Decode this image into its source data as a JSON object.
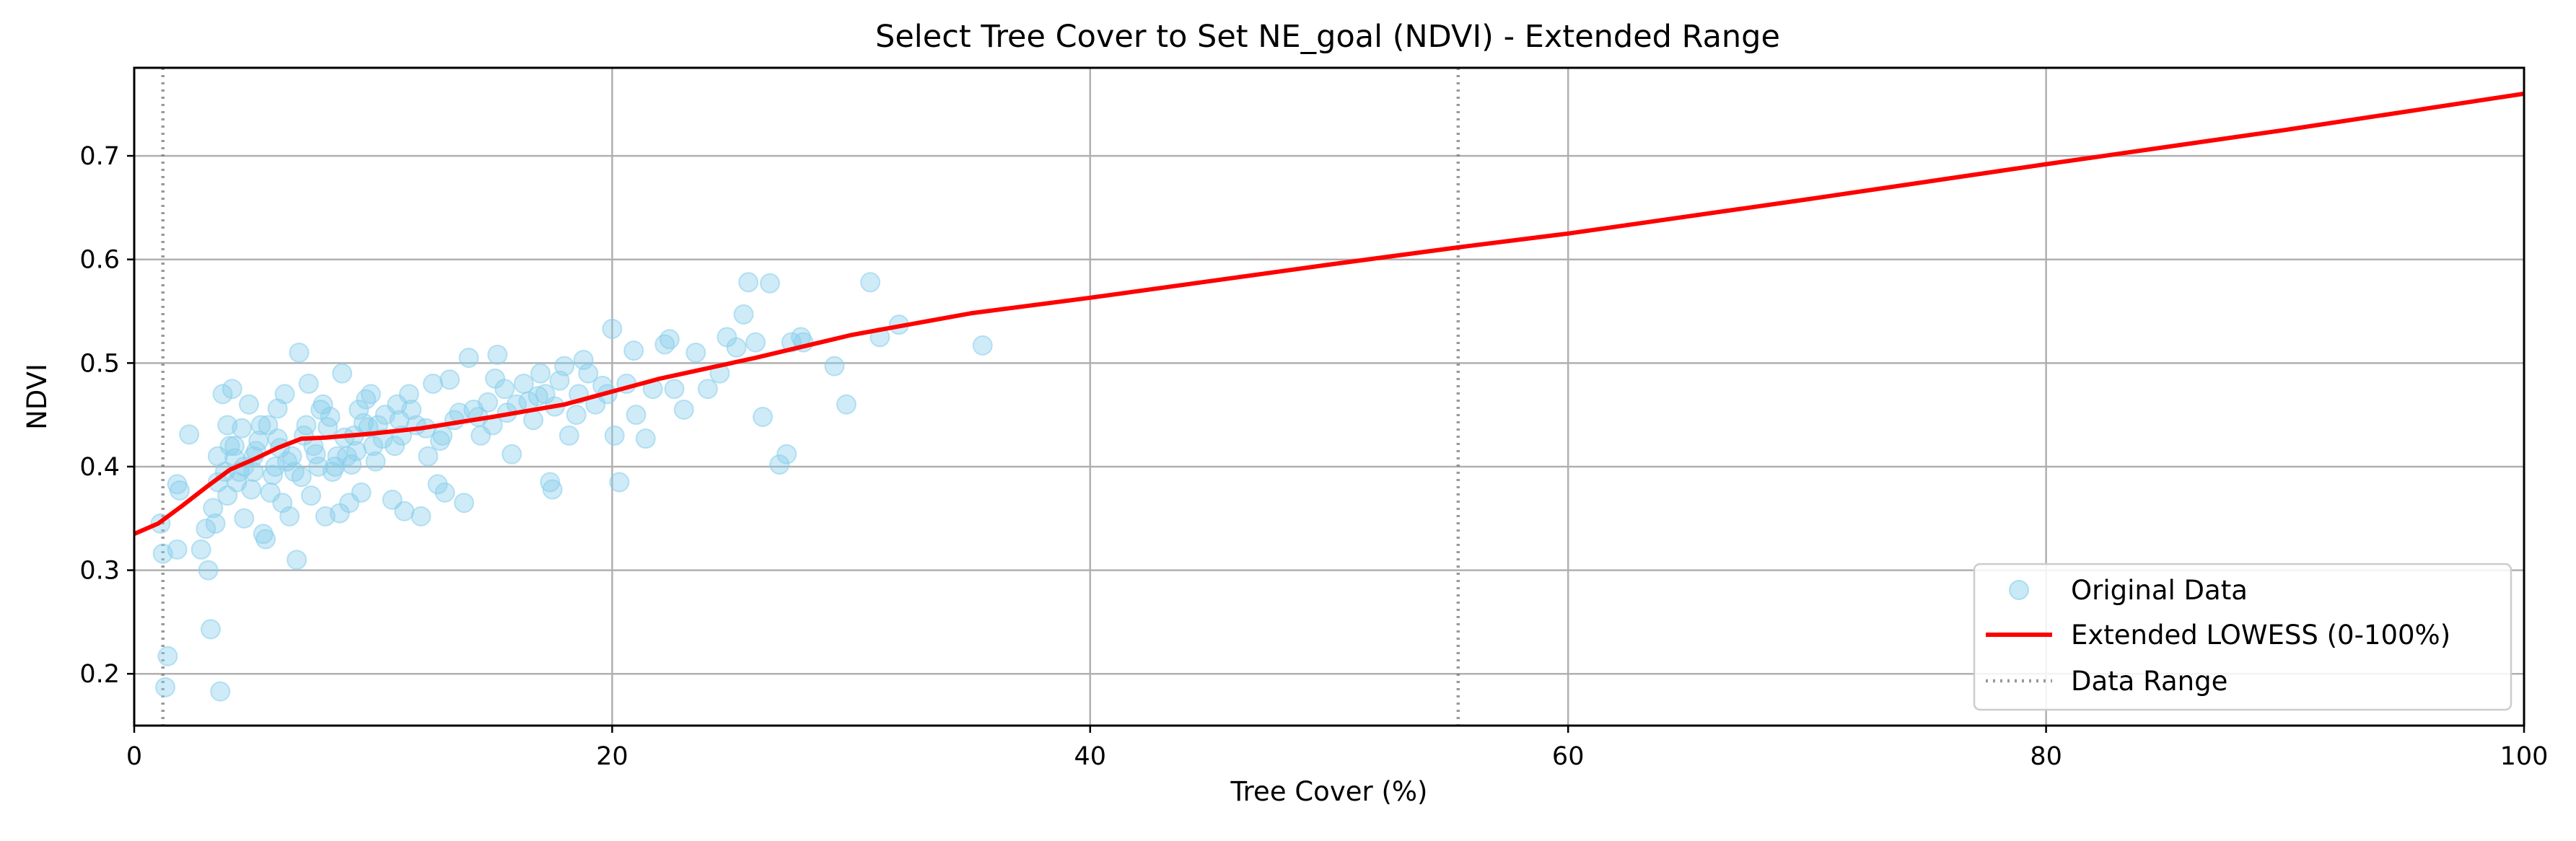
{
  "chart_data": {
    "type": "scatter",
    "title": "Select Tree Cover to Set NE_goal (NDVI) - Extended Range",
    "xlabel": "Tree Cover (%)",
    "ylabel": "NDVI",
    "xlim": [
      0,
      100
    ],
    "ylim": [
      0.15,
      0.785
    ],
    "x_ticks": [
      0,
      20,
      40,
      60,
      80,
      100
    ],
    "y_ticks": [
      0.2,
      0.3,
      0.4,
      0.5,
      0.6,
      0.7
    ],
    "grid": true,
    "legend_position": "lower-right",
    "legend": [
      "Original Data",
      "Extended LOWESS (0-100%)",
      "Data Range"
    ],
    "colors": {
      "points": "#87ceeb",
      "lowess": "#ff0000",
      "range": "#808080"
    },
    "series": [
      {
        "name": "Original Data",
        "style": "markers",
        "points": [
          [
            1.1,
            0.345
          ],
          [
            1.2,
            0.316
          ],
          [
            1.3,
            0.187
          ],
          [
            1.4,
            0.217
          ],
          [
            1.8,
            0.383
          ],
          [
            1.9,
            0.377
          ],
          [
            1.8,
            0.32
          ],
          [
            2.3,
            0.431
          ],
          [
            2.8,
            0.32
          ],
          [
            3.0,
            0.34
          ],
          [
            3.1,
            0.3
          ],
          [
            3.2,
            0.243
          ],
          [
            3.6,
            0.183
          ],
          [
            3.3,
            0.36
          ],
          [
            3.4,
            0.345
          ],
          [
            3.5,
            0.41
          ],
          [
            3.7,
            0.47
          ],
          [
            3.8,
            0.395
          ],
          [
            3.9,
            0.44
          ],
          [
            4.1,
            0.475
          ],
          [
            4.2,
            0.42
          ],
          [
            4.3,
            0.385
          ],
          [
            4.5,
            0.437
          ],
          [
            4.6,
            0.35
          ],
          [
            4.8,
            0.46
          ],
          [
            5.0,
            0.395
          ],
          [
            5.1,
            0.415
          ],
          [
            5.3,
            0.44
          ],
          [
            5.4,
            0.335
          ],
          [
            5.5,
            0.33
          ],
          [
            5.7,
            0.375
          ],
          [
            5.9,
            0.4
          ],
          [
            6.0,
            0.456
          ],
          [
            6.2,
            0.365
          ],
          [
            6.3,
            0.47
          ],
          [
            6.5,
            0.352
          ],
          [
            6.6,
            0.41
          ],
          [
            6.8,
            0.31
          ],
          [
            6.9,
            0.51
          ],
          [
            7.0,
            0.39
          ],
          [
            7.2,
            0.44
          ],
          [
            7.3,
            0.48
          ],
          [
            7.5,
            0.42
          ],
          [
            7.7,
            0.4
          ],
          [
            7.9,
            0.46
          ],
          [
            8.0,
            0.352
          ],
          [
            8.2,
            0.448
          ],
          [
            8.4,
            0.4
          ],
          [
            8.6,
            0.355
          ],
          [
            8.7,
            0.49
          ],
          [
            8.9,
            0.41
          ],
          [
            9.0,
            0.365
          ],
          [
            9.2,
            0.43
          ],
          [
            9.4,
            0.455
          ],
          [
            9.5,
            0.375
          ],
          [
            9.7,
            0.465
          ],
          [
            9.9,
            0.47
          ],
          [
            10.0,
            0.42
          ],
          [
            10.2,
            0.44
          ],
          [
            10.5,
            0.45
          ],
          [
            10.8,
            0.368
          ],
          [
            11.0,
            0.46
          ],
          [
            11.2,
            0.43
          ],
          [
            11.3,
            0.357
          ],
          [
            11.5,
            0.47
          ],
          [
            11.8,
            0.44
          ],
          [
            12.0,
            0.352
          ],
          [
            12.3,
            0.41
          ],
          [
            12.5,
            0.48
          ],
          [
            12.7,
            0.383
          ],
          [
            13.0,
            0.375
          ],
          [
            13.2,
            0.484
          ],
          [
            13.4,
            0.445
          ],
          [
            13.8,
            0.365
          ],
          [
            14.0,
            0.505
          ],
          [
            14.2,
            0.455
          ],
          [
            14.5,
            0.43
          ],
          [
            14.8,
            0.462
          ],
          [
            15.0,
            0.44
          ],
          [
            15.2,
            0.508
          ],
          [
            15.5,
            0.475
          ],
          [
            15.8,
            0.412
          ],
          [
            16.0,
            0.46
          ],
          [
            16.3,
            0.48
          ],
          [
            16.7,
            0.445
          ],
          [
            17.0,
            0.49
          ],
          [
            17.2,
            0.47
          ],
          [
            17.4,
            0.385
          ],
          [
            17.5,
            0.378
          ],
          [
            17.8,
            0.483
          ],
          [
            18.0,
            0.497
          ],
          [
            18.2,
            0.43
          ],
          [
            18.5,
            0.45
          ],
          [
            18.8,
            0.503
          ],
          [
            19.0,
            0.49
          ],
          [
            19.3,
            0.46
          ],
          [
            19.8,
            0.47
          ],
          [
            20.0,
            0.533
          ],
          [
            20.1,
            0.43
          ],
          [
            20.3,
            0.385
          ],
          [
            20.6,
            0.48
          ],
          [
            20.9,
            0.512
          ],
          [
            21.0,
            0.45
          ],
          [
            21.4,
            0.427
          ],
          [
            21.7,
            0.475
          ],
          [
            22.2,
            0.518
          ],
          [
            22.4,
            0.523
          ],
          [
            22.6,
            0.475
          ],
          [
            23.0,
            0.455
          ],
          [
            23.5,
            0.51
          ],
          [
            24.0,
            0.475
          ],
          [
            24.5,
            0.49
          ],
          [
            24.8,
            0.525
          ],
          [
            25.2,
            0.515
          ],
          [
            25.5,
            0.547
          ],
          [
            25.7,
            0.578
          ],
          [
            26.0,
            0.52
          ],
          [
            26.3,
            0.448
          ],
          [
            26.6,
            0.577
          ],
          [
            27.0,
            0.402
          ],
          [
            27.3,
            0.412
          ],
          [
            27.5,
            0.52
          ],
          [
            27.9,
            0.525
          ],
          [
            28.0,
            0.52
          ],
          [
            29.3,
            0.497
          ],
          [
            29.8,
            0.46
          ],
          [
            30.8,
            0.578
          ],
          [
            31.2,
            0.525
          ],
          [
            32.0,
            0.537
          ],
          [
            35.5,
            0.517
          ],
          [
            4.2,
            0.408
          ],
          [
            4.6,
            0.4
          ],
          [
            5.2,
            0.425
          ],
          [
            5.6,
            0.44
          ],
          [
            6.1,
            0.418
          ],
          [
            6.4,
            0.405
          ],
          [
            7.1,
            0.43
          ],
          [
            7.6,
            0.412
          ],
          [
            8.1,
            0.438
          ],
          [
            8.8,
            0.428
          ],
          [
            9.3,
            0.415
          ],
          [
            9.8,
            0.438
          ],
          [
            10.4,
            0.427
          ],
          [
            10.9,
            0.42
          ],
          [
            11.6,
            0.455
          ],
          [
            12.2,
            0.437
          ],
          [
            12.9,
            0.43
          ],
          [
            13.6,
            0.452
          ],
          [
            14.4,
            0.448
          ],
          [
            15.6,
            0.452
          ],
          [
            16.5,
            0.463
          ],
          [
            17.6,
            0.458
          ],
          [
            18.6,
            0.47
          ],
          [
            19.6,
            0.478
          ],
          [
            3.5,
            0.385
          ],
          [
            3.9,
            0.372
          ],
          [
            4.4,
            0.395
          ],
          [
            4.9,
            0.378
          ],
          [
            5.8,
            0.392
          ],
          [
            6.7,
            0.395
          ],
          [
            7.4,
            0.372
          ],
          [
            8.3,
            0.395
          ],
          [
            9.1,
            0.402
          ],
          [
            10.1,
            0.405
          ],
          [
            5.0,
            0.41
          ],
          [
            6.0,
            0.427
          ],
          [
            4.0,
            0.42
          ],
          [
            7.8,
            0.455
          ],
          [
            8.5,
            0.41
          ],
          [
            9.6,
            0.442
          ],
          [
            11.1,
            0.445
          ],
          [
            12.8,
            0.425
          ],
          [
            15.1,
            0.485
          ],
          [
            16.9,
            0.468
          ]
        ]
      },
      {
        "name": "Extended LOWESS (0-100%)",
        "style": "line",
        "x": [
          0,
          1,
          2,
          3,
          4,
          5,
          6,
          7,
          8,
          10,
          12,
          15,
          18,
          22,
          26,
          30,
          35,
          40,
          50,
          55.5,
          60,
          70,
          80,
          90,
          100
        ],
        "y": [
          0.335,
          0.345,
          0.362,
          0.38,
          0.397,
          0.407,
          0.418,
          0.427,
          0.428,
          0.432,
          0.437,
          0.448,
          0.46,
          0.485,
          0.505,
          0.527,
          0.548,
          0.563,
          0.595,
          0.612,
          0.625,
          0.658,
          0.692,
          0.725,
          0.76
        ]
      },
      {
        "name": "Data Range",
        "style": "dotted-vlines",
        "x": [
          1.2,
          55.4
        ]
      }
    ]
  }
}
